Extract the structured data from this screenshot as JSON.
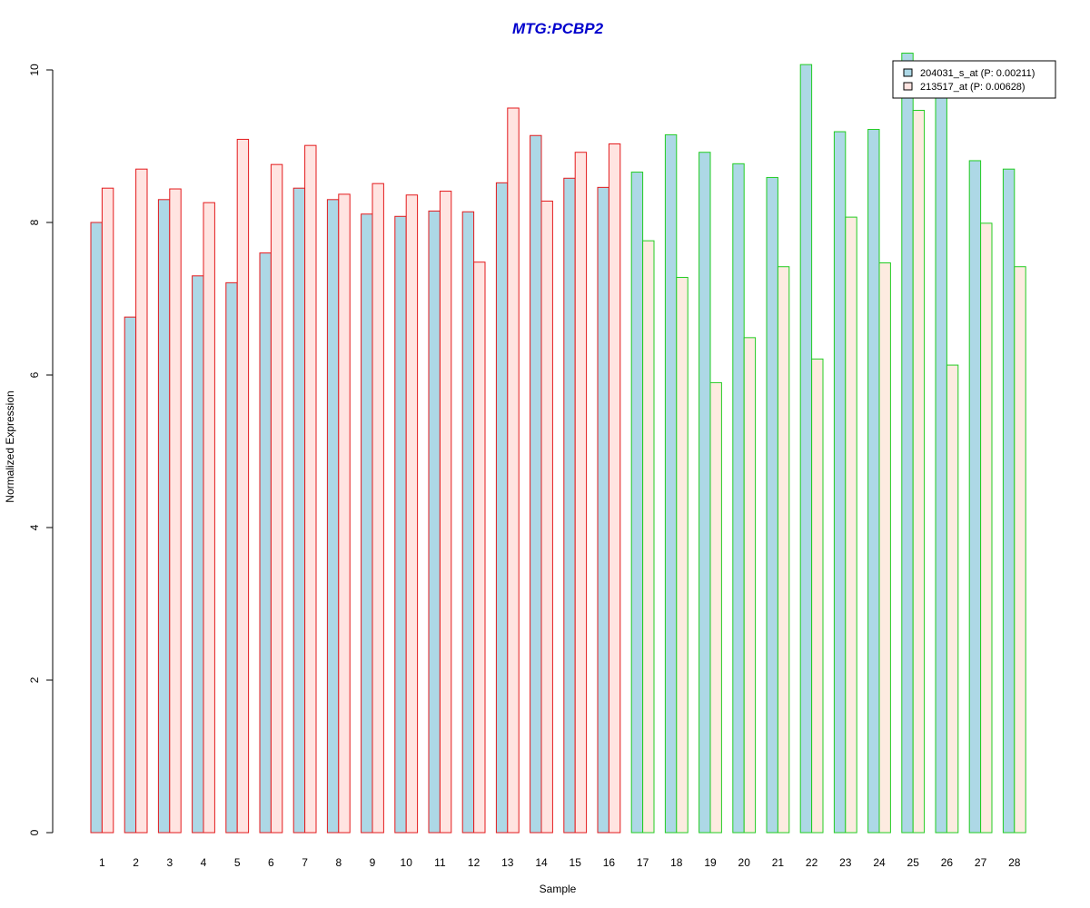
{
  "chart_data": {
    "type": "bar",
    "title": "MTG:PCBP2",
    "xlabel": "Sample",
    "ylabel": "Normalized Expression",
    "ylim": [
      0,
      10
    ],
    "yticks": [
      0,
      2,
      4,
      6,
      8,
      10
    ],
    "grid": false,
    "legend_position": "top-right",
    "categories": [
      "1",
      "2",
      "3",
      "4",
      "5",
      "6",
      "7",
      "8",
      "9",
      "10",
      "11",
      "12",
      "13",
      "14",
      "15",
      "16",
      "17",
      "18",
      "19",
      "20",
      "21",
      "22",
      "23",
      "24",
      "25",
      "26",
      "27",
      "28"
    ],
    "groups": [
      {
        "samples": [
          "1",
          "2",
          "3",
          "4",
          "5",
          "6",
          "7",
          "8",
          "9",
          "10",
          "11",
          "12",
          "13",
          "14",
          "15",
          "16"
        ],
        "outline_color": "#e31a1c"
      },
      {
        "samples": [
          "17",
          "18",
          "19",
          "20",
          "21",
          "22",
          "23",
          "24",
          "25",
          "26",
          "27",
          "28"
        ],
        "outline_color": "#22cc22"
      }
    ],
    "series": [
      {
        "name": "204031_s_at (P: 0.00211)",
        "fill": "#add8e6",
        "values": [
          8.0,
          6.76,
          8.3,
          7.3,
          7.21,
          7.6,
          8.45,
          8.3,
          8.11,
          8.08,
          8.15,
          8.14,
          8.52,
          9.14,
          8.58,
          8.46,
          8.66,
          9.15,
          8.92,
          8.77,
          8.59,
          10.07,
          9.19,
          9.22,
          10.22,
          10.0,
          8.81,
          8.7
        ]
      },
      {
        "name": "213517_at (P: 0.00628)",
        "fill": "#ffe4e1",
        "fill_group2": "#fdebe0",
        "values": [
          8.45,
          8.7,
          8.44,
          8.26,
          9.09,
          8.76,
          9.01,
          8.37,
          8.51,
          8.36,
          8.41,
          7.48,
          9.5,
          8.28,
          8.92,
          9.03,
          7.76,
          7.28,
          5.9,
          6.49,
          7.42,
          6.21,
          8.07,
          7.47,
          9.47,
          6.13,
          7.99,
          7.42
        ]
      }
    ]
  },
  "colors": {
    "title": "#0000cd",
    "axis": "#000000",
    "legend_border": "#000000"
  }
}
